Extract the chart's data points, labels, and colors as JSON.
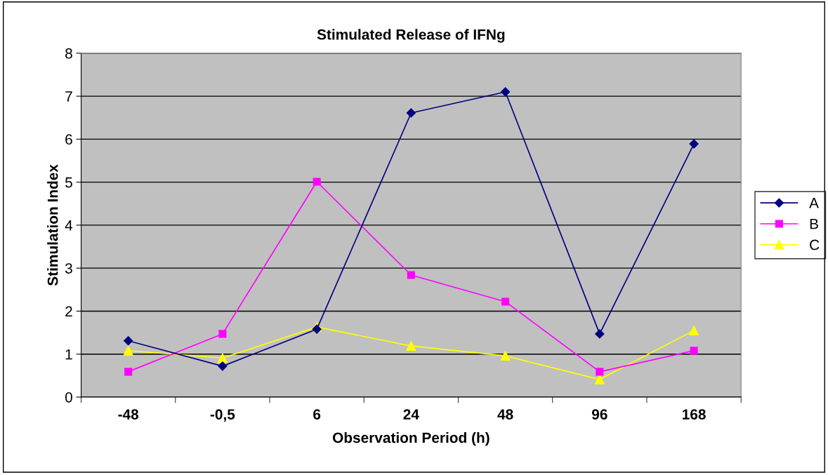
{
  "chart_data": {
    "type": "line",
    "title": "Stimulated Release of IFNg",
    "xlabel": "Observation Period (h)",
    "ylabel": "Stimulation Index",
    "categories": [
      "-48",
      "-0,5",
      "6",
      "24",
      "48",
      "96",
      "168"
    ],
    "series": [
      {
        "name": "A",
        "color": "#000080",
        "marker": "diamond",
        "values": [
          1.31,
          0.72,
          1.58,
          6.61,
          7.1,
          1.47,
          5.89
        ]
      },
      {
        "name": "B",
        "color": "#ff00ff",
        "marker": "square",
        "values": [
          0.59,
          1.47,
          5.01,
          2.84,
          2.22,
          0.59,
          1.08
        ]
      },
      {
        "name": "C",
        "color": "#ffff00",
        "marker": "triangle",
        "values": [
          1.08,
          0.91,
          1.63,
          1.19,
          0.96,
          0.41,
          1.55
        ]
      }
    ],
    "ylim": [
      0,
      8
    ],
    "yticks": [
      0,
      1,
      2,
      3,
      4,
      5,
      6,
      7,
      8
    ],
    "grid": "y",
    "legend": "right",
    "line_style": "solid"
  }
}
